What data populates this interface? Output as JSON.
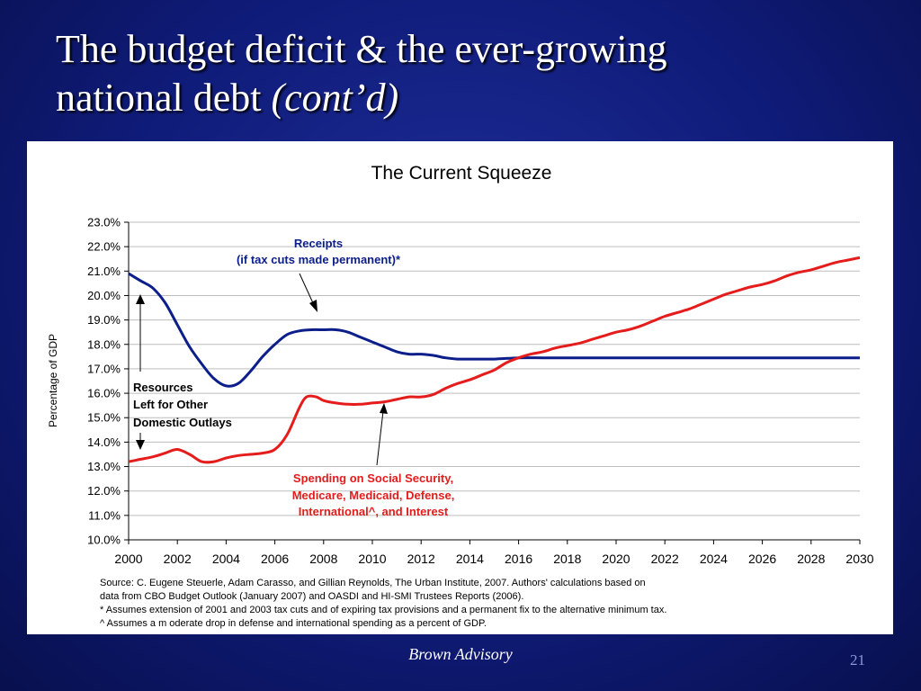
{
  "slide": {
    "title_line1": "The budget deficit & the ever-growing",
    "title_line2_plain": "national debt ",
    "title_line2_italic": "(cont’d)",
    "footer": "Brown Advisory",
    "page_number": "21"
  },
  "chart_data": {
    "type": "line",
    "title": "The Current Squeeze",
    "ylabel": "Percentage of GDP",
    "xlabel": "",
    "xlim": [
      2000,
      2030
    ],
    "ylim": [
      10,
      23
    ],
    "grid": true,
    "x_ticks": [
      2000,
      2002,
      2004,
      2006,
      2008,
      2010,
      2012,
      2014,
      2016,
      2018,
      2020,
      2022,
      2024,
      2026,
      2028,
      2030
    ],
    "x_tick_labels": [
      "2000",
      "2002",
      "2004",
      "2006",
      "2008",
      "2010",
      "2012",
      "2014",
      "2016",
      "2018",
      "2020",
      "2022",
      "2024",
      "2026",
      "2028",
      "2030"
    ],
    "y_ticks": [
      10,
      11,
      12,
      13,
      14,
      15,
      16,
      17,
      18,
      19,
      20,
      21,
      22,
      23
    ],
    "y_tick_labels": [
      "10.0%",
      "11.0%",
      "12.0%",
      "13.0%",
      "14.0%",
      "15.0%",
      "16.0%",
      "17.0%",
      "18.0%",
      "19.0%",
      "20.0%",
      "21.0%",
      "22.0%",
      "23.0%"
    ],
    "series": [
      {
        "name": "Receipts (if tax cuts made permanent)*",
        "color": "#0b1e8a",
        "points": [
          [
            2000,
            20.9
          ],
          [
            2000.5,
            20.6
          ],
          [
            2001,
            20.3
          ],
          [
            2001.5,
            19.7
          ],
          [
            2002,
            18.8
          ],
          [
            2002.5,
            17.9
          ],
          [
            2003,
            17.2
          ],
          [
            2003.5,
            16.6
          ],
          [
            2004,
            16.3
          ],
          [
            2004.5,
            16.4
          ],
          [
            2005,
            16.9
          ],
          [
            2005.5,
            17.5
          ],
          [
            2006,
            18.0
          ],
          [
            2006.5,
            18.4
          ],
          [
            2007,
            18.55
          ],
          [
            2007.5,
            18.6
          ],
          [
            2008,
            18.6
          ],
          [
            2008.5,
            18.6
          ],
          [
            2009,
            18.5
          ],
          [
            2009.5,
            18.3
          ],
          [
            2010,
            18.1
          ],
          [
            2010.5,
            17.9
          ],
          [
            2011,
            17.7
          ],
          [
            2011.5,
            17.6
          ],
          [
            2012,
            17.6
          ],
          [
            2012.5,
            17.55
          ],
          [
            2013,
            17.45
          ],
          [
            2013.5,
            17.4
          ],
          [
            2014,
            17.4
          ],
          [
            2015,
            17.4
          ],
          [
            2016,
            17.45
          ],
          [
            2017,
            17.45
          ],
          [
            2018,
            17.45
          ],
          [
            2020,
            17.45
          ],
          [
            2022,
            17.45
          ],
          [
            2024,
            17.45
          ],
          [
            2026,
            17.45
          ],
          [
            2028,
            17.45
          ],
          [
            2030,
            17.45
          ]
        ]
      },
      {
        "name": "Spending on Social Security, Medicare, Medicaid, Defense, International^, and Interest",
        "color": "#e51c1c",
        "points": [
          [
            2000,
            13.2
          ],
          [
            2000.5,
            13.3
          ],
          [
            2001,
            13.4
          ],
          [
            2001.5,
            13.55
          ],
          [
            2002,
            13.7
          ],
          [
            2002.5,
            13.5
          ],
          [
            2003,
            13.2
          ],
          [
            2003.5,
            13.2
          ],
          [
            2004,
            13.35
          ],
          [
            2004.5,
            13.45
          ],
          [
            2005,
            13.5
          ],
          [
            2005.5,
            13.55
          ],
          [
            2006,
            13.7
          ],
          [
            2006.5,
            14.3
          ],
          [
            2007,
            15.4
          ],
          [
            2007.3,
            15.85
          ],
          [
            2007.7,
            15.85
          ],
          [
            2008,
            15.7
          ],
          [
            2008.5,
            15.6
          ],
          [
            2009,
            15.55
          ],
          [
            2009.5,
            15.55
          ],
          [
            2010,
            15.6
          ],
          [
            2010.5,
            15.65
          ],
          [
            2011,
            15.75
          ],
          [
            2011.5,
            15.85
          ],
          [
            2012,
            15.85
          ],
          [
            2012.5,
            15.95
          ],
          [
            2013,
            16.2
          ],
          [
            2013.5,
            16.4
          ],
          [
            2014,
            16.55
          ],
          [
            2014.5,
            16.75
          ],
          [
            2015,
            16.95
          ],
          [
            2015.5,
            17.25
          ],
          [
            2016,
            17.45
          ],
          [
            2016.5,
            17.6
          ],
          [
            2017,
            17.7
          ],
          [
            2017.5,
            17.85
          ],
          [
            2018,
            17.95
          ],
          [
            2018.5,
            18.05
          ],
          [
            2019,
            18.2
          ],
          [
            2019.5,
            18.35
          ],
          [
            2020,
            18.5
          ],
          [
            2020.5,
            18.6
          ],
          [
            2021,
            18.75
          ],
          [
            2021.5,
            18.95
          ],
          [
            2022,
            19.15
          ],
          [
            2022.5,
            19.3
          ],
          [
            2023,
            19.45
          ],
          [
            2023.5,
            19.65
          ],
          [
            2024,
            19.85
          ],
          [
            2024.5,
            20.05
          ],
          [
            2025,
            20.2
          ],
          [
            2025.5,
            20.35
          ],
          [
            2026,
            20.45
          ],
          [
            2026.5,
            20.6
          ],
          [
            2027,
            20.8
          ],
          [
            2027.5,
            20.95
          ],
          [
            2028,
            21.05
          ],
          [
            2028.5,
            21.2
          ],
          [
            2029,
            21.35
          ],
          [
            2029.5,
            21.45
          ],
          [
            2030,
            21.55
          ]
        ]
      }
    ],
    "annotations": {
      "receipts_line1": "Receipts",
      "receipts_line2": "(if tax cuts made permanent)*",
      "resources_line1": "Resources",
      "resources_line2": "Left for Other",
      "resources_line3": "Domestic Outlays",
      "spending_line1": "Spending on Social Security,",
      "spending_line2": "Medicare, Medicaid, Defense,",
      "spending_line3": "International^, and Interest"
    },
    "source_notes": [
      "Source:  C. Eugene Steuerle, Adam Carasso, and Gillian Reynolds, The Urban Institute, 2007.  Authors' calculations based on",
      "data from CBO Budget Outlook (January 2007) and OASDI and HI-SMI Trustees Reports (2006).",
      "* Assumes extension of 2001 and 2003 tax cuts and of expiring tax provisions and a permanent fix to the alternative minimum tax.",
      "^ Assumes a m oderate drop in defense and international spending as a percent of GDP."
    ]
  }
}
